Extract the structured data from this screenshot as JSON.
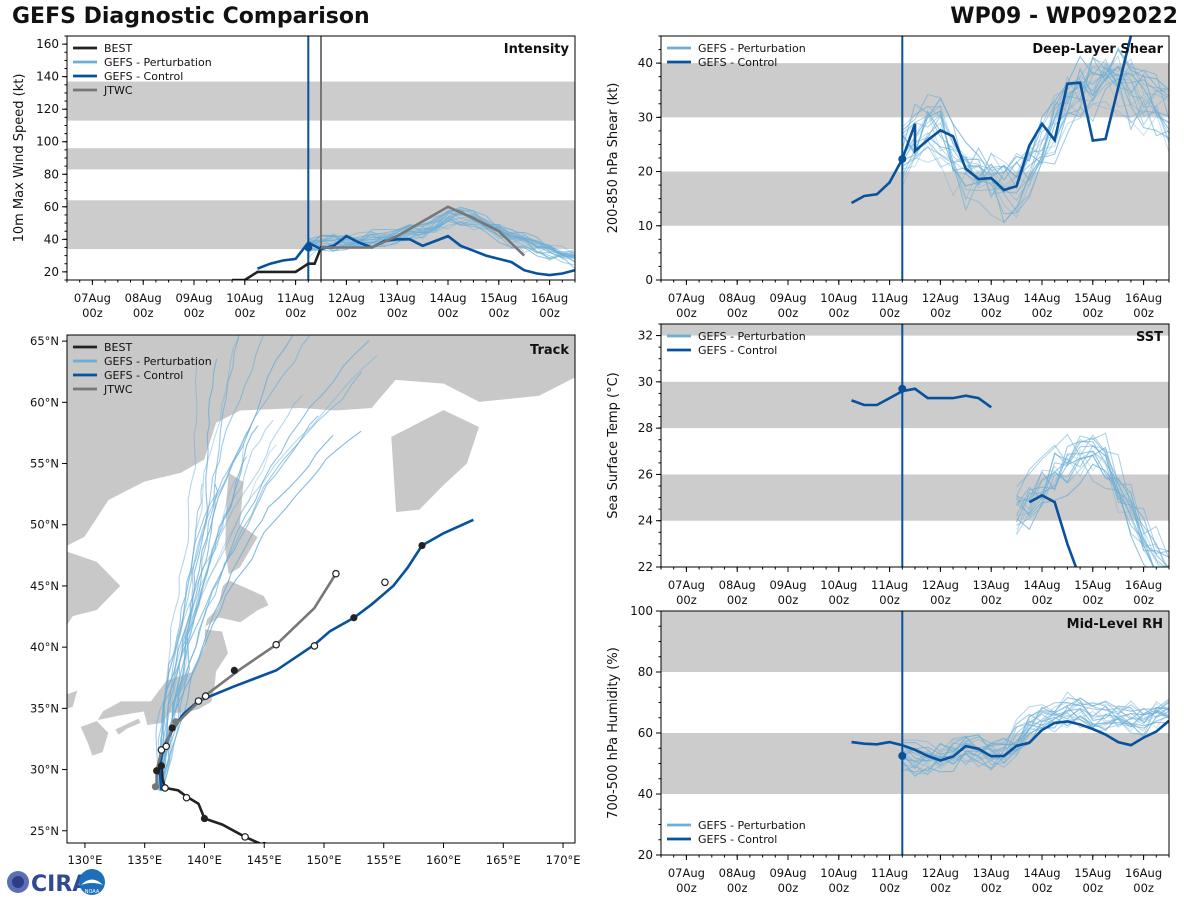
{
  "header": {
    "title_left": "GEFS Diagnostic Comparison",
    "title_right": "WP09 - WP092022"
  },
  "colors": {
    "best": "#222222",
    "perturbation": "#6baed6",
    "control": "#08519c",
    "jtwc": "#777777",
    "band": "#cccccc",
    "land": "#c8c8c8"
  },
  "legend_labels": {
    "best": "BEST",
    "perturbation": "GEFS - Perturbation",
    "control": "GEFS - Control",
    "jtwc": "JTWC"
  },
  "time_ticks": [
    {
      "line1": "07Aug",
      "line2": "00z",
      "t": 0
    },
    {
      "line1": "08Aug",
      "line2": "00z",
      "t": 24
    },
    {
      "line1": "09Aug",
      "line2": "00z",
      "t": 48
    },
    {
      "line1": "10Aug",
      "line2": "00z",
      "t": 72
    },
    {
      "line1": "11Aug",
      "line2": "00z",
      "t": 96
    },
    {
      "line1": "12Aug",
      "line2": "00z",
      "t": 120
    },
    {
      "line1": "13Aug",
      "line2": "00z",
      "t": 144
    },
    {
      "line1": "14Aug",
      "line2": "00z",
      "t": 168
    },
    {
      "line1": "15Aug",
      "line2": "00z",
      "t": 192
    },
    {
      "line1": "16Aug",
      "line2": "00z",
      "t": 216
    }
  ],
  "logo": {
    "text": "CIRA",
    "badge": "NOAA"
  },
  "chart_data": [
    {
      "id": "intensity",
      "type": "line",
      "label": "Intensity",
      "ylabel": "10m Max Wind Speed (kt)",
      "xlim_hours": [
        -12,
        228
      ],
      "ylim": [
        15,
        165
      ],
      "yticks": [
        20,
        40,
        60,
        80,
        100,
        120,
        140,
        160
      ],
      "bands": [
        [
          34,
          64
        ],
        [
          83,
          96
        ],
        [
          113,
          137
        ]
      ],
      "vlines": [
        {
          "t": 102,
          "series": "control"
        },
        {
          "t": 108,
          "series": "jtwc"
        }
      ],
      "legend": [
        "best",
        "perturbation",
        "control",
        "jtwc"
      ],
      "series": [
        {
          "name": "BEST",
          "key": "best",
          "t": [
            66,
            72,
            78,
            84,
            90,
            96,
            102,
            105,
            108,
            114
          ],
          "v": [
            15,
            15,
            20,
            20,
            20,
            20,
            25,
            25,
            35,
            35
          ]
        },
        {
          "name": "GEFS - Control",
          "key": "control",
          "t": [
            78,
            84,
            90,
            96,
            102,
            108,
            114,
            120,
            126,
            132,
            138,
            144,
            150,
            156,
            162,
            168,
            174,
            180,
            186,
            192,
            198,
            204,
            210,
            216,
            222,
            228
          ],
          "v": [
            22,
            25,
            27,
            28,
            38,
            34,
            36,
            42,
            38,
            35,
            39,
            40,
            40,
            36,
            39,
            42,
            36,
            33,
            30,
            28,
            26,
            21,
            19,
            18,
            19,
            21
          ],
          "marker": {
            "t": 102,
            "v": 35
          }
        },
        {
          "name": "JTWC",
          "key": "jtwc",
          "t": [
            108,
            120,
            132,
            144,
            156,
            168,
            180,
            192,
            204
          ],
          "v": [
            35,
            35,
            35,
            42,
            51,
            60,
            53,
            45,
            30
          ]
        }
      ],
      "perturbation": {
        "t_start": 102,
        "t_end": 228,
        "step": 6,
        "base": [
          35,
          38,
          38,
          38,
          39,
          40,
          41,
          42,
          44,
          45,
          48,
          52,
          54,
          52,
          48,
          44,
          41,
          38,
          35,
          32,
          30,
          28,
          27,
          26
        ],
        "amp": 8,
        "count": 20
      }
    },
    {
      "id": "shear",
      "type": "line",
      "label": "Deep-Layer Shear",
      "ylabel": "200-850 hPa Shear (kt)",
      "xlim_hours": [
        -12,
        228
      ],
      "ylim": [
        0,
        45
      ],
      "yticks": [
        0,
        10,
        20,
        30,
        40
      ],
      "bands": [
        [
          10,
          20
        ],
        [
          30,
          40
        ]
      ],
      "vlines": [
        {
          "t": 102,
          "series": "control"
        }
      ],
      "legend": [
        "perturbation",
        "control"
      ],
      "series": [
        {
          "name": "GEFS - Control",
          "key": "control",
          "t": [
            78,
            84,
            90,
            96,
            108,
            102,
            108,
            114,
            120,
            126,
            132,
            138,
            144,
            150,
            156,
            162,
            168,
            174,
            180,
            186,
            192,
            198,
            204,
            210
          ],
          "v": [
            14.2,
            15.5,
            15.8,
            18.0,
            28.8,
            22.3,
            23.8,
            25.8,
            27.6,
            26.5,
            20.5,
            18.6,
            18.8,
            16.6,
            17.3,
            24.8,
            28.8,
            25.8,
            36.2,
            36.4,
            25.7,
            26.0,
            35.5,
            45
          ],
          "marker": {
            "t": 102,
            "v": 22.3
          }
        }
      ],
      "perturbation": {
        "t_start": 102,
        "t_end": 228,
        "step": 6,
        "base": [
          23,
          26,
          28,
          27,
          22,
          20,
          19,
          18,
          16,
          17,
          21,
          24,
          28,
          32,
          34,
          36,
          38,
          37,
          35,
          33,
          32,
          30,
          26,
          24
        ],
        "amp": 9,
        "count": 20
      }
    },
    {
      "id": "sst",
      "type": "line",
      "label": "SST",
      "ylabel": "Sea Surface Temp (°C)",
      "xlim_hours": [
        -12,
        228
      ],
      "ylim": [
        22,
        32.5
      ],
      "yticks": [
        22,
        24,
        26,
        28,
        30,
        32
      ],
      "bands": [
        [
          24,
          26
        ],
        [
          28,
          30
        ],
        [
          32,
          33
        ]
      ],
      "vlines": [
        {
          "t": 102,
          "series": "control"
        }
      ],
      "legend": [
        "perturbation",
        "control"
      ],
      "series": [
        {
          "name": "GEFS - Control",
          "key": "control",
          "t": [
            78,
            84,
            90,
            96,
            102,
            108,
            114,
            120,
            126,
            132,
            138,
            144
          ],
          "v": [
            29.2,
            29.0,
            29.0,
            29.3,
            29.6,
            29.7,
            29.3,
            29.3,
            29.3,
            29.4,
            29.3,
            28.9
          ],
          "marker": {
            "t": 102,
            "v": 29.7
          }
        },
        {
          "name": "GEFS - Control",
          "key": "control",
          "t": [
            162,
            168,
            174,
            180,
            186
          ],
          "v": [
            24.8,
            25.1,
            24.8,
            23.0,
            21.5
          ]
        }
      ],
      "perturbation": {
        "t_start": 156,
        "t_end": 228,
        "step": 6,
        "base": [
          24.5,
          25.0,
          25.5,
          26.2,
          26.5,
          26.8,
          27.0,
          26.5,
          25.5,
          24.5,
          23.5,
          22.5,
          22.0
        ],
        "amp": 1.8,
        "count": 16
      }
    },
    {
      "id": "rh",
      "type": "line",
      "label": "Mid-Level RH",
      "ylabel": "700-500 hPa Humidity (%)",
      "xlim_hours": [
        -12,
        228
      ],
      "ylim": [
        20,
        100
      ],
      "yticks": [
        20,
        40,
        60,
        80,
        100
      ],
      "bands": [
        [
          40,
          60
        ],
        [
          80,
          100
        ]
      ],
      "vlines": [
        {
          "t": 102,
          "series": "control"
        }
      ],
      "legend": [
        "perturbation",
        "control"
      ],
      "legend_position": "bottom-left",
      "series": [
        {
          "name": "GEFS - Control",
          "key": "control",
          "t": [
            78,
            84,
            90,
            96,
            102,
            108,
            114,
            120,
            126,
            132,
            138,
            144,
            150,
            156,
            162,
            168,
            174,
            180,
            186,
            192,
            198,
            204,
            210,
            216,
            222,
            228
          ],
          "v": [
            57,
            56.5,
            56.3,
            57,
            56,
            54.5,
            52.5,
            51,
            52.3,
            55.7,
            54.8,
            52.4,
            52.5,
            55.8,
            56.8,
            61,
            63.3,
            63.8,
            62.8,
            61.3,
            59.5,
            57,
            56,
            58.5,
            60.5,
            64
          ],
          "marker": {
            "t": 102,
            "v": 52.5
          }
        }
      ],
      "perturbation": {
        "t_start": 102,
        "t_end": 228,
        "step": 6,
        "base": [
          52,
          52,
          51,
          52,
          54,
          55,
          54,
          53,
          54,
          58,
          62,
          64,
          66,
          67,
          67,
          66,
          66,
          65,
          64,
          65,
          67,
          68,
          69,
          70
        ],
        "amp": 8,
        "count": 20
      }
    },
    {
      "id": "track",
      "type": "scatter",
      "label": "Track",
      "xlabel": "",
      "ylabel": "",
      "xlim": [
        128.5,
        171
      ],
      "ylim": [
        24,
        65.5
      ],
      "xticks": [
        130,
        135,
        140,
        145,
        150,
        155,
        160,
        165,
        170
      ],
      "xticklabels": [
        "130°E",
        "135°E",
        "140°E",
        "145°E",
        "150°E",
        "155°E",
        "160°E",
        "165°E",
        "170°E"
      ],
      "yticks": [
        25,
        30,
        35,
        40,
        45,
        50,
        55,
        60,
        65
      ],
      "yticklabels": [
        "25°N",
        "30°N",
        "35°N",
        "40°N",
        "45°N",
        "50°N",
        "55°N",
        "60°N",
        "65°N"
      ],
      "legend": [
        "best",
        "perturbation",
        "control",
        "jtwc"
      ],
      "series": [
        {
          "name": "BEST",
          "key": "best",
          "lon": [
            145,
            143.4,
            141.5,
            140,
            139.5,
            138.5,
            137.8,
            136.7,
            136.5,
            136.4,
            136.2,
            136.0
          ],
          "lat": [
            23.8,
            24.5,
            25.5,
            26.0,
            27.2,
            27.8,
            28.3,
            28.5,
            29.2,
            30.3,
            29.9,
            29.5
          ]
        },
        {
          "name": "GEFS - Control",
          "key": "control",
          "lon": [
            136.4,
            136.3,
            136.3,
            136.5,
            136.8,
            137.3,
            138.2,
            139.5,
            142.5,
            146.0,
            149.2,
            150.5,
            152.5,
            154.0,
            155.8,
            157.0,
            158.2,
            160.0,
            162.5
          ],
          "lat": [
            28.3,
            29.5,
            30.5,
            31.5,
            32.2,
            33.2,
            34.5,
            35.6,
            36.8,
            38.1,
            40.2,
            41.3,
            42.4,
            43.5,
            45.0,
            46.5,
            48.3,
            49.3,
            50.4
          ]
        },
        {
          "name": "JTWC",
          "key": "jtwc",
          "lon": [
            136.0,
            136.0,
            136.4,
            136.8,
            137.2,
            137.8,
            140.0,
            143.0,
            146.0,
            149.2,
            151.0
          ],
          "lat": [
            28.6,
            29.9,
            31.5,
            32.0,
            33.2,
            33.9,
            36.0,
            38.2,
            40.2,
            43.2,
            46.0
          ]
        }
      ],
      "markers_filled": {
        "best": [
          [
            145,
            23.8
          ],
          [
            140,
            26.0
          ],
          [
            136.4,
            30.3
          ],
          [
            136.0,
            29.9
          ],
          [
            137.3,
            33.4
          ],
          [
            142.5,
            38.1
          ],
          [
            152.5,
            42.4
          ],
          [
            158.2,
            48.3
          ]
        ],
        "jtwc": [
          [
            135.9,
            28.6
          ],
          [
            137.6,
            33.9
          ]
        ]
      },
      "markers_open": [
        [
          143.4,
          24.5
        ],
        [
          138.5,
          27.7
        ],
        [
          136.7,
          28.5
        ],
        [
          136.4,
          31.6
        ],
        [
          136.8,
          31.9
        ],
        [
          140.1,
          36.0
        ],
        [
          139.5,
          35.6
        ],
        [
          146.0,
          40.2
        ],
        [
          149.2,
          40.1
        ],
        [
          155.1,
          45.3
        ],
        [
          151.0,
          46.0
        ]
      ],
      "perturbation": {
        "count": 22,
        "start": [
          136.3,
          28.5
        ]
      }
    }
  ]
}
